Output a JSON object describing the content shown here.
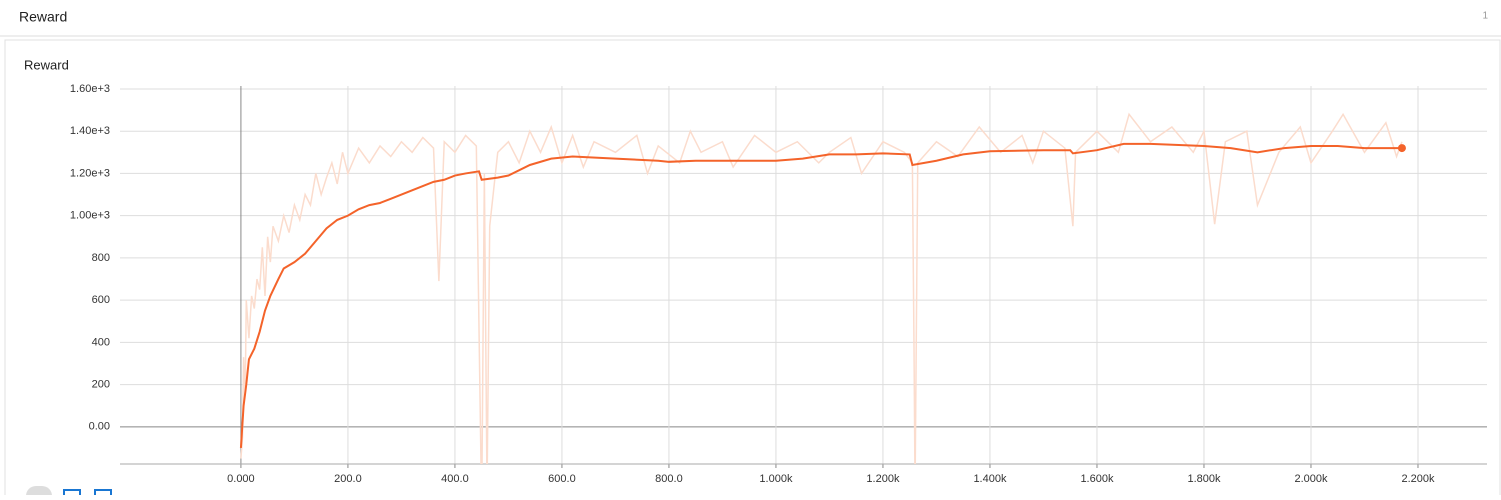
{
  "header": {
    "title": "Reward",
    "count": "1"
  },
  "chart_data": {
    "type": "line",
    "title": "Reward",
    "xlim": [
      -226,
      2329
    ],
    "ylim": [
      -176,
      1614
    ],
    "xticks": [
      {
        "value": 0,
        "label": "0.000"
      },
      {
        "value": 200,
        "label": "200.0"
      },
      {
        "value": 400,
        "label": "400.0"
      },
      {
        "value": 600,
        "label": "600.0"
      },
      {
        "value": 800,
        "label": "800.0"
      },
      {
        "value": 1000,
        "label": "1.000k"
      },
      {
        "value": 1200,
        "label": "1.200k"
      },
      {
        "value": 1400,
        "label": "1.400k"
      },
      {
        "value": 1600,
        "label": "1.600k"
      },
      {
        "value": 1800,
        "label": "1.800k"
      },
      {
        "value": 2000,
        "label": "2.000k"
      },
      {
        "value": 2200,
        "label": "2.200k"
      }
    ],
    "yticks": [
      {
        "value": 0,
        "label": "0.00"
      },
      200,
      400,
      600,
      800,
      {
        "value": 1000,
        "label": "1.00e+3"
      },
      {
        "value": 1200,
        "label": "1.20e+3"
      },
      {
        "value": 1400,
        "label": "1.40e+3"
      },
      {
        "value": 1600,
        "label": "1.60e+3"
      }
    ],
    "grid": true,
    "series": [
      {
        "color": "#fbdccd",
        "x": [
          0,
          3,
          5,
          8,
          10,
          15,
          20,
          25,
          30,
          35,
          40,
          45,
          50,
          55,
          60,
          70,
          80,
          90,
          100,
          110,
          120,
          130,
          140,
          150,
          160,
          170,
          180,
          190,
          200,
          220,
          240,
          260,
          280,
          300,
          320,
          340,
          360,
          370,
          380,
          400,
          420,
          440,
          450,
          455,
          460,
          465,
          480,
          500,
          520,
          540,
          560,
          580,
          600,
          620,
          640,
          660,
          700,
          740,
          760,
          780,
          820,
          840,
          860,
          900,
          920,
          960,
          1000,
          1040,
          1080,
          1100,
          1140,
          1160,
          1200,
          1240,
          1255,
          1258,
          1260,
          1265,
          1300,
          1340,
          1380,
          1420,
          1460,
          1480,
          1500,
          1540,
          1555,
          1560,
          1600,
          1640,
          1660,
          1700,
          1740,
          1780,
          1800,
          1820,
          1840,
          1880,
          1900,
          1940,
          1980,
          2000,
          2040,
          2060,
          2100,
          2140,
          2160,
          2170
        ],
        "values": [
          -150,
          -50,
          330,
          150,
          600,
          420,
          620,
          560,
          700,
          650,
          850,
          620,
          900,
          780,
          950,
          880,
          1000,
          920,
          1050,
          980,
          1100,
          1050,
          1200,
          1100,
          1180,
          1250,
          1150,
          1300,
          1200,
          1320,
          1250,
          1330,
          1280,
          1350,
          1300,
          1370,
          1320,
          690,
          1350,
          1300,
          1380,
          1330,
          -400,
          1200,
          -300,
          950,
          1300,
          1350,
          1250,
          1400,
          1300,
          1420,
          1250,
          1380,
          1230,
          1350,
          1300,
          1380,
          1200,
          1330,
          1250,
          1400,
          1300,
          1350,
          1230,
          1380,
          1300,
          1350,
          1250,
          1300,
          1370,
          1200,
          1350,
          1300,
          1250,
          390,
          -300,
          1250,
          1350,
          1280,
          1420,
          1300,
          1380,
          1250,
          1400,
          1320,
          950,
          1300,
          1400,
          1300,
          1480,
          1350,
          1420,
          1300,
          1400,
          960,
          1350,
          1400,
          1050,
          1300,
          1420,
          1250,
          1400,
          1480,
          1300,
          1440,
          1280,
          1350
        ]
      },
      {
        "color": "#f4632a",
        "x": [
          0,
          5,
          10,
          15,
          25,
          35,
          45,
          55,
          70,
          80,
          100,
          120,
          140,
          160,
          180,
          200,
          220,
          240,
          260,
          280,
          300,
          320,
          340,
          360,
          380,
          400,
          420,
          445,
          450,
          480,
          500,
          540,
          580,
          620,
          700,
          780,
          800,
          850,
          900,
          1000,
          1050,
          1100,
          1150,
          1200,
          1250,
          1255,
          1300,
          1350,
          1400,
          1500,
          1550,
          1555,
          1600,
          1650,
          1700,
          1800,
          1850,
          1900,
          1950,
          2000,
          2050,
          2100,
          2170
        ],
        "values": [
          -100,
          100,
          200,
          320,
          370,
          450,
          550,
          620,
          700,
          750,
          780,
          820,
          880,
          940,
          980,
          1000,
          1030,
          1050,
          1060,
          1080,
          1100,
          1120,
          1140,
          1160,
          1170,
          1190,
          1200,
          1210,
          1170,
          1180,
          1190,
          1240,
          1270,
          1280,
          1270,
          1260,
          1255,
          1260,
          1260,
          1260,
          1270,
          1290,
          1290,
          1295,
          1290,
          1240,
          1260,
          1290,
          1305,
          1310,
          1310,
          1295,
          1310,
          1340,
          1340,
          1330,
          1320,
          1300,
          1320,
          1330,
          1330,
          1320,
          1320
        ]
      }
    ]
  }
}
